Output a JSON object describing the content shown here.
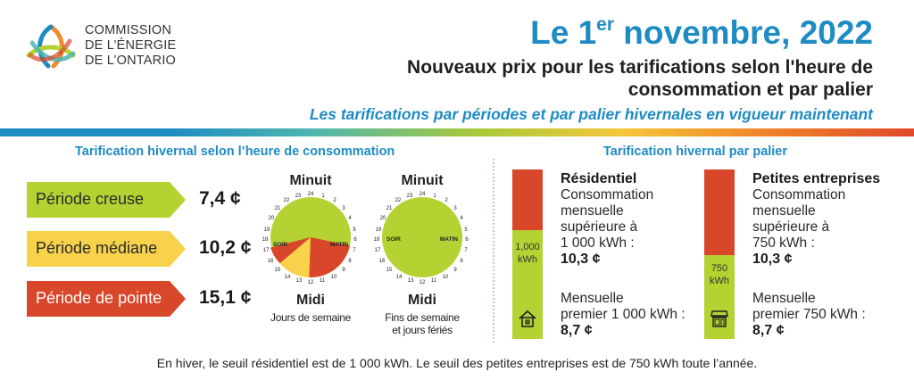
{
  "header": {
    "org_name": [
      "COMMISSION",
      "DE L’ÉNERGIE",
      "DE L’ONTARIO"
    ],
    "date_prefix": "Le 1",
    "date_sup": "er",
    "date_suffix": " novembre, 2022",
    "subtitle": "Nouveaux prix pour les tarifications selon l'heure de consommation et par palier",
    "tagline": "Les tarifications par périodes et par palier hivernales en vigueur maintenant"
  },
  "tou": {
    "heading": "Tarification hivernal selon l’heure de consommation",
    "periods": [
      {
        "label": "Période creuse",
        "price": "7,4 ¢",
        "color": "#b4d232"
      },
      {
        "label": "Période médiane",
        "price": "10,2 ¢",
        "color": "#f7d24a"
      },
      {
        "label": "Période de pointe",
        "price": "15,1 ¢",
        "color": "#d9472b"
      }
    ],
    "clocks": [
      {
        "top": "Minuit",
        "bottom": "Midi",
        "sub": [
          "Jours de semaine"
        ],
        "left_label": "SOIR",
        "right_label": "MATIN"
      },
      {
        "top": "Minuit",
        "bottom": "Midi",
        "sub": [
          "Fins de semaine",
          "et jours fériés"
        ],
        "left_label": "SOIR",
        "right_label": "MATIN"
      }
    ]
  },
  "tiered": {
    "heading": "Tarification hivernal par palier",
    "residential": {
      "name": "Résidentiel",
      "upper_desc": [
        "Consommation",
        "mensuelle",
        "supérieure à",
        "1 000 kWh :"
      ],
      "upper_rate": "10,3 ¢",
      "lower_desc": [
        "Mensuelle",
        "premier 1 000 kWh :"
      ],
      "lower_rate": "8,7 ¢",
      "threshold": [
        "1,000",
        "kWh"
      ],
      "icon": "house-icon"
    },
    "small_business": {
      "name": "Petites entreprises",
      "upper_desc": [
        "Consommation",
        "mensuelle",
        "supérieure à",
        "750 kWh :"
      ],
      "upper_rate": "10,3 ¢",
      "lower_desc": [
        "Mensuelle",
        "premier 750 kWh :"
      ],
      "lower_rate": "8,7 ¢",
      "threshold": [
        "750",
        "kWh"
      ],
      "icon": "storefront-icon"
    }
  },
  "footnote": "En hiver, le seuil résidentiel est de 1 000 kWh. Le seuil des petites entreprises est de 750 kWh toute l’année.",
  "colors": {
    "accent_blue": "#1e8bc3",
    "off_peak": "#b4d232",
    "mid_peak": "#f7d24a",
    "on_peak": "#d9472b"
  }
}
